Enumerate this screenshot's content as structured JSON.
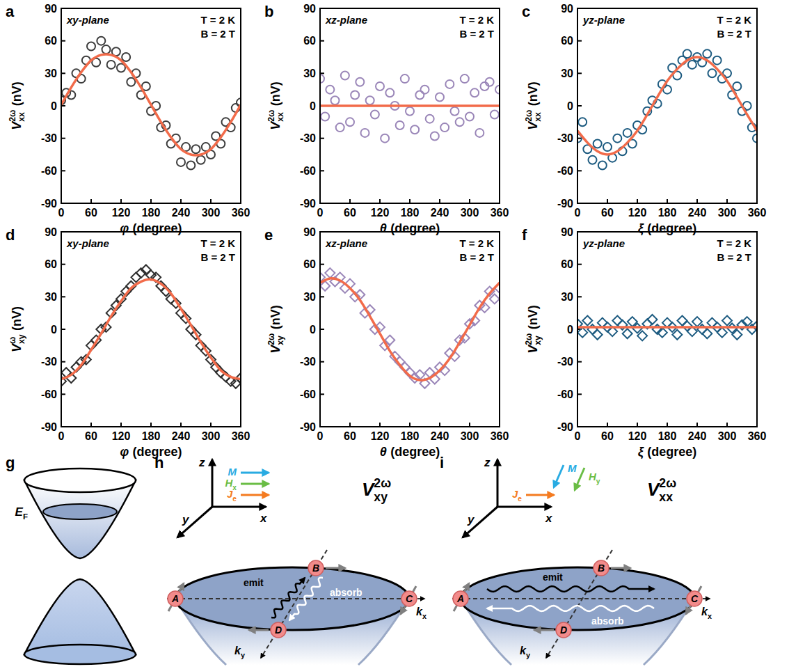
{
  "chart_data": [
    {
      "type": "scatter",
      "label": "a",
      "annotations": [
        "xy-plane",
        "T = 2 K",
        "B = 2 T"
      ],
      "x_label": {
        "symbol": "φ",
        "unit": "(degree)"
      },
      "y_label": {
        "base": "V",
        "sub": "xx",
        "sup": "2ω",
        "unit": "(nV)"
      },
      "xlim": [
        0,
        360
      ],
      "xticks": [
        0,
        60,
        120,
        180,
        240,
        300,
        360
      ],
      "ylim": [
        -90,
        90
      ],
      "yticks": [
        -90,
        -60,
        -30,
        0,
        30,
        60,
        90
      ],
      "series": [
        {
          "type": "scatter",
          "marker": "circle",
          "color": "#3c3c3c",
          "x": [
            0,
            10,
            20,
            30,
            40,
            50,
            60,
            70,
            80,
            90,
            100,
            110,
            120,
            130,
            140,
            150,
            160,
            170,
            180,
            190,
            200,
            210,
            220,
            230,
            240,
            250,
            260,
            270,
            280,
            290,
            300,
            310,
            320,
            330,
            340,
            350,
            360
          ],
          "values": [
            5,
            12,
            10,
            30,
            25,
            42,
            55,
            40,
            60,
            52,
            38,
            50,
            35,
            45,
            22,
            30,
            10,
            18,
            -5,
            0,
            -20,
            -18,
            -35,
            -30,
            -52,
            -38,
            -55,
            -40,
            -50,
            -38,
            -45,
            -28,
            -35,
            -15,
            -20,
            -2,
            3
          ]
        },
        {
          "type": "line",
          "color": "#f26b4a",
          "x": [
            0,
            20,
            40,
            60,
            80,
            100,
            120,
            140,
            160,
            180,
            200,
            220,
            240,
            260,
            280,
            300,
            320,
            340,
            360
          ],
          "values": [
            1,
            17,
            31,
            42,
            47,
            47,
            42,
            31,
            17,
            1,
            -15,
            -29,
            -40,
            -45,
            -45,
            -40,
            -29,
            -15,
            1
          ]
        }
      ]
    },
    {
      "type": "scatter",
      "label": "b",
      "annotations": [
        "xz-plane",
        "T = 2 K",
        "B = 2 T"
      ],
      "x_label": {
        "symbol": "θ",
        "unit": "(degree)"
      },
      "y_label": {
        "base": "V",
        "sub": "xx",
        "sup": "2ω",
        "unit": "(nV)"
      },
      "xlim": [
        0,
        360
      ],
      "xticks": [
        0,
        60,
        120,
        180,
        240,
        300,
        360
      ],
      "ylim": [
        -90,
        90
      ],
      "yticks": [
        -90,
        -60,
        -30,
        0,
        30,
        60,
        90
      ],
      "series": [
        {
          "type": "scatter",
          "marker": "circle",
          "color": "#9a86b8",
          "x": [
            0,
            10,
            20,
            30,
            40,
            50,
            60,
            70,
            80,
            90,
            100,
            110,
            120,
            130,
            140,
            150,
            160,
            170,
            180,
            190,
            200,
            210,
            220,
            230,
            240,
            250,
            260,
            270,
            280,
            290,
            300,
            310,
            320,
            330,
            340,
            350,
            360
          ],
          "values": [
            25,
            -10,
            15,
            5,
            -20,
            28,
            -15,
            10,
            22,
            -25,
            5,
            -8,
            18,
            -30,
            12,
            0,
            -18,
            25,
            -5,
            -22,
            10,
            15,
            -12,
            -28,
            8,
            -20,
            20,
            -5,
            -15,
            25,
            -10,
            12,
            -25,
            18,
            22,
            -8,
            15
          ]
        },
        {
          "type": "line",
          "color": "#f26b4a",
          "x": [
            0,
            20,
            40,
            60,
            80,
            100,
            120,
            140,
            160,
            180,
            200,
            220,
            240,
            260,
            280,
            300,
            320,
            340,
            360
          ],
          "values": [
            0,
            0,
            0,
            0,
            0,
            0,
            0,
            0,
            0,
            0,
            0,
            0,
            0,
            0,
            0,
            0,
            0,
            0,
            0
          ]
        }
      ]
    },
    {
      "type": "scatter",
      "label": "c",
      "annotations": [
        "yz-plane",
        "T = 2 K",
        "B = 2 T"
      ],
      "x_label": {
        "symbol": "ξ",
        "unit": "(degree)"
      },
      "y_label": {
        "base": "V",
        "sub": "xx",
        "sup": "2ω",
        "unit": "(nV)"
      },
      "xlim": [
        0,
        360
      ],
      "xticks": [
        0,
        60,
        120,
        180,
        240,
        300,
        360
      ],
      "ylim": [
        -90,
        90
      ],
      "yticks": [
        -90,
        -60,
        -30,
        0,
        30,
        60,
        90
      ],
      "series": [
        {
          "type": "scatter",
          "marker": "circle",
          "color": "#1d5b80",
          "x": [
            0,
            10,
            20,
            30,
            40,
            50,
            60,
            70,
            80,
            90,
            100,
            110,
            120,
            130,
            140,
            150,
            160,
            170,
            180,
            190,
            200,
            210,
            220,
            230,
            240,
            250,
            260,
            270,
            280,
            290,
            300,
            310,
            320,
            330,
            340,
            350,
            360
          ],
          "values": [
            -30,
            -15,
            -40,
            -50,
            -35,
            -55,
            -38,
            -48,
            -30,
            -42,
            -25,
            -35,
            -18,
            -22,
            -5,
            5,
            2,
            20,
            15,
            35,
            28,
            42,
            48,
            38,
            45,
            40,
            48,
            30,
            42,
            25,
            30,
            10,
            18,
            -5,
            0,
            -20,
            -30
          ]
        },
        {
          "type": "line",
          "color": "#f26b4a",
          "x": [
            0,
            20,
            40,
            60,
            80,
            100,
            120,
            140,
            160,
            180,
            200,
            220,
            240,
            260,
            280,
            300,
            320,
            340,
            360
          ],
          "values": [
            -23,
            -34,
            -42,
            -45,
            -42,
            -34,
            -23,
            -8,
            8,
            23,
            34,
            42,
            45,
            42,
            34,
            23,
            8,
            -8,
            -23
          ]
        }
      ]
    },
    {
      "type": "scatter",
      "label": "d",
      "annotations": [
        "xy-plane",
        "T = 2 K",
        "B = 2 T"
      ],
      "x_label": {
        "symbol": "φ",
        "unit": "(degree)"
      },
      "y_label": {
        "base": "V",
        "sub": "xy",
        "sup": "ω",
        "unit": "(nV)"
      },
      "xlim": [
        0,
        360
      ],
      "xticks": [
        0,
        60,
        120,
        180,
        240,
        300,
        360
      ],
      "ylim": [
        -90,
        90
      ],
      "yticks": [
        -90,
        -60,
        -30,
        0,
        30,
        60,
        90
      ],
      "series": [
        {
          "type": "scatter",
          "marker": "diamond",
          "color": "#2e2e2e",
          "x": [
            0,
            10,
            20,
            30,
            40,
            50,
            60,
            70,
            80,
            90,
            100,
            110,
            120,
            130,
            140,
            150,
            160,
            170,
            180,
            190,
            200,
            210,
            220,
            230,
            240,
            250,
            260,
            270,
            280,
            290,
            300,
            310,
            320,
            330,
            340,
            350,
            360
          ],
          "values": [
            -48,
            -40,
            -45,
            -35,
            -30,
            -28,
            -15,
            -10,
            0,
            2,
            15,
            22,
            28,
            35,
            40,
            48,
            52,
            55,
            50,
            48,
            40,
            35,
            28,
            24,
            15,
            10,
            0,
            -5,
            -15,
            -20,
            -28,
            -35,
            -40,
            -44,
            -48,
            -50,
            -45
          ]
        },
        {
          "type": "line",
          "color": "#f26b4a",
          "x": [
            0,
            20,
            40,
            60,
            80,
            100,
            120,
            140,
            160,
            180,
            200,
            220,
            240,
            260,
            280,
            300,
            320,
            340,
            360
          ],
          "values": [
            -46,
            -42,
            -33,
            -19,
            -4,
            12,
            26,
            38,
            44,
            46,
            42,
            33,
            19,
            4,
            -12,
            -26,
            -38,
            -44,
            -46
          ]
        }
      ]
    },
    {
      "type": "scatter",
      "label": "e",
      "annotations": [
        "xz-plane",
        "T = 2 K",
        "B = 2 T"
      ],
      "x_label": {
        "symbol": "θ",
        "unit": "(degree)"
      },
      "y_label": {
        "base": "V",
        "sub": "xy",
        "sup": "2ω",
        "unit": "(nV)"
      },
      "xlim": [
        0,
        360
      ],
      "xticks": [
        0,
        60,
        120,
        180,
        240,
        300,
        360
      ],
      "ylim": [
        -90,
        90
      ],
      "yticks": [
        -90,
        -60,
        -30,
        0,
        30,
        60,
        90
      ],
      "series": [
        {
          "type": "scatter",
          "marker": "diamond",
          "color": "#9a86b8",
          "x": [
            0,
            10,
            20,
            30,
            40,
            50,
            60,
            70,
            80,
            90,
            100,
            110,
            120,
            130,
            140,
            150,
            160,
            170,
            180,
            190,
            200,
            210,
            220,
            230,
            240,
            250,
            260,
            270,
            280,
            290,
            300,
            310,
            320,
            330,
            340,
            350,
            360
          ],
          "values": [
            48,
            40,
            52,
            44,
            48,
            38,
            42,
            30,
            32,
            15,
            18,
            0,
            2,
            -15,
            -10,
            -25,
            -30,
            -35,
            -40,
            -45,
            -42,
            -50,
            -40,
            -46,
            -35,
            -38,
            -22,
            -25,
            -10,
            -8,
            5,
            8,
            22,
            20,
            35,
            28,
            38
          ]
        },
        {
          "type": "line",
          "color": "#f26b4a",
          "x": [
            0,
            20,
            40,
            60,
            80,
            100,
            120,
            140,
            160,
            180,
            200,
            220,
            240,
            260,
            280,
            300,
            320,
            340,
            360
          ],
          "values": [
            43,
            47,
            45,
            38,
            27,
            12,
            -4,
            -20,
            -33,
            -43,
            -47,
            -45,
            -38,
            -27,
            -12,
            4,
            20,
            33,
            43
          ]
        }
      ]
    },
    {
      "type": "scatter",
      "label": "f",
      "annotations": [
        "yz-plane",
        "T = 2 K",
        "B = 2 T"
      ],
      "x_label": {
        "symbol": "ξ",
        "unit": "(degree)"
      },
      "y_label": {
        "base": "V",
        "sub": "xy",
        "sup": "2ω",
        "unit": "(nV)"
      },
      "xlim": [
        0,
        360
      ],
      "xticks": [
        0,
        60,
        120,
        180,
        240,
        300,
        360
      ],
      "ylim": [
        -90,
        90
      ],
      "yticks": [
        -90,
        -60,
        -30,
        0,
        30,
        60,
        90
      ],
      "series": [
        {
          "type": "scatter",
          "marker": "diamond",
          "color": "#1d5b80",
          "x": [
            0,
            10,
            20,
            30,
            40,
            50,
            60,
            70,
            80,
            90,
            100,
            110,
            120,
            130,
            140,
            150,
            160,
            170,
            180,
            190,
            200,
            210,
            220,
            230,
            240,
            250,
            260,
            270,
            280,
            290,
            300,
            310,
            320,
            330,
            340,
            350,
            360
          ],
          "values": [
            5,
            -3,
            8,
            0,
            -5,
            6,
            2,
            -2,
            8,
            4,
            -4,
            7,
            1,
            -6,
            5,
            9,
            0,
            -3,
            6,
            2,
            -5,
            8,
            3,
            -2,
            7,
            0,
            -4,
            6,
            2,
            -3,
            8,
            1,
            -5,
            4,
            7,
            0,
            3
          ]
        },
        {
          "type": "line",
          "color": "#f26b4a",
          "x": [
            0,
            20,
            40,
            60,
            80,
            100,
            120,
            140,
            160,
            180,
            200,
            220,
            240,
            260,
            280,
            300,
            320,
            340,
            360
          ],
          "values": [
            2,
            2,
            2,
            2,
            2,
            2,
            2,
            2,
            2,
            2,
            2,
            2,
            2,
            2,
            2,
            2,
            2,
            2,
            2
          ]
        }
      ]
    }
  ],
  "diagrams": [
    {
      "label": "g",
      "energy_label": {
        "base": "E",
        "sub": "F"
      }
    },
    {
      "label": "h",
      "title": {
        "base": "V",
        "sub": "xy",
        "sup": "2ω"
      },
      "axes": [
        "x",
        "y",
        "z"
      ],
      "k_axes": [
        {
          "base": "k",
          "sub": "x"
        },
        {
          "base": "k",
          "sub": "y"
        }
      ],
      "vectors": [
        {
          "base": "M",
          "color": "#29abe2"
        },
        {
          "base": "H",
          "sub": "x",
          "color": "#6abd45"
        },
        {
          "base": "J",
          "sub": "e",
          "color": "#f47b20"
        }
      ],
      "points": [
        "A",
        "B",
        "C",
        "D"
      ],
      "emit": "emit",
      "absorb": "absorb"
    },
    {
      "label": "i",
      "title": {
        "base": "V",
        "sub": "xx",
        "sup": "2ω"
      },
      "axes": [
        "x",
        "y",
        "z"
      ],
      "k_axes": [
        {
          "base": "k",
          "sub": "x"
        },
        {
          "base": "k",
          "sub": "y"
        }
      ],
      "vectors": [
        {
          "base": "M",
          "color": "#29abe2"
        },
        {
          "base": "H",
          "sub": "y",
          "color": "#6abd45"
        },
        {
          "base": "J",
          "sub": "e",
          "color": "#f47b20"
        }
      ],
      "points": [
        "A",
        "B",
        "C",
        "D"
      ],
      "emit": "emit",
      "absorb": "absorb"
    }
  ]
}
